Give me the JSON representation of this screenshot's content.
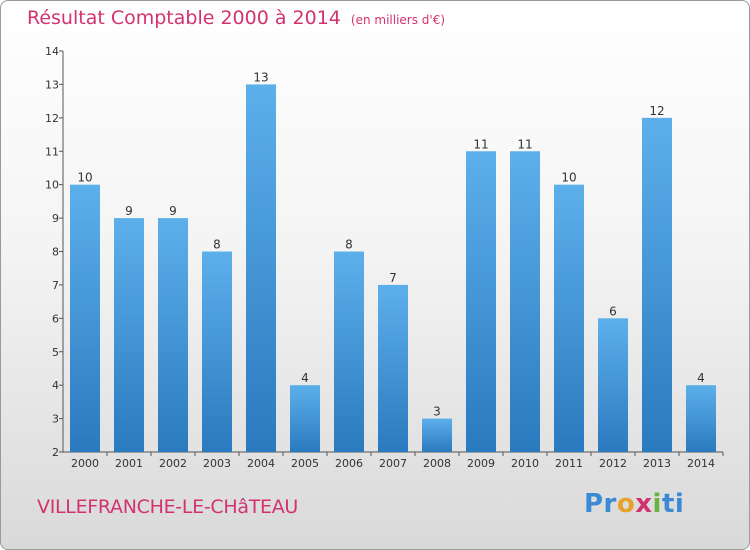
{
  "header": {
    "title": "Résultat Comptable 2000 à 2014",
    "subtitle": "(en milliers d'€)"
  },
  "footer": {
    "commune": "VILLEFRANCHE-LE-CHâTEAU",
    "logo": {
      "p1": "Pr",
      "p2": "o",
      "p3": "x",
      "p4": "i",
      "p5": "ti"
    }
  },
  "colors": {
    "accent": "#d2336f",
    "bar_top": "#5cb0ea",
    "bar_bottom": "#2a7abf"
  },
  "chart_data": {
    "type": "bar",
    "title": "Résultat Comptable 2000 à 2014",
    "subtitle": "(en milliers d'€)",
    "xlabel": "",
    "ylabel": "",
    "categories": [
      "2000",
      "2001",
      "2002",
      "2003",
      "2004",
      "2005",
      "2006",
      "2007",
      "2008",
      "2009",
      "2010",
      "2011",
      "2012",
      "2013",
      "2014"
    ],
    "values": [
      10,
      9,
      9,
      8,
      13,
      4,
      8,
      7,
      3,
      11,
      11,
      10,
      6,
      12,
      4
    ],
    "ylim": [
      2,
      14
    ],
    "yticks": [
      2,
      3,
      4,
      5,
      6,
      7,
      8,
      9,
      10,
      11,
      12,
      13,
      14
    ],
    "grid": false,
    "data_labels": true
  }
}
